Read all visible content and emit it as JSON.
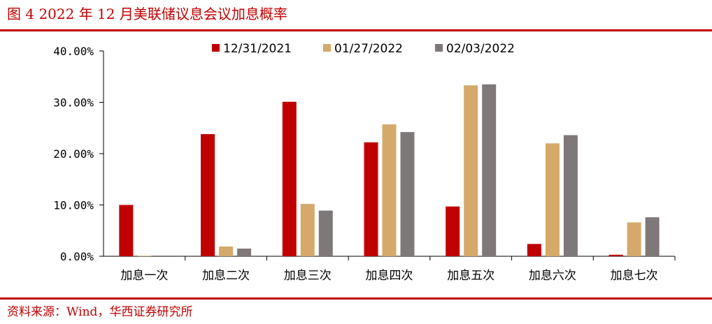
{
  "figure": {
    "title": "图 4  2022 年 12 月美联储议息会议加息概率",
    "source": "资料来源：Wind，华西证券研究所"
  },
  "colors": {
    "accent": "#c00000",
    "series": [
      "#c00000",
      "#d4a96a",
      "#7f7879"
    ]
  },
  "chart_data": {
    "type": "bar",
    "title": "",
    "xlabel": "",
    "ylabel": "",
    "ylim": [
      0,
      40
    ],
    "yticks": [
      0,
      10,
      20,
      30,
      40
    ],
    "ytick_labels": [
      "0.00%",
      "10.00%",
      "20.00%",
      "30.00%",
      "40.00%"
    ],
    "categories": [
      "加息一次",
      "加息二次",
      "加息三次",
      "加息四次",
      "加息五次",
      "加息六次",
      "加息七次"
    ],
    "series": [
      {
        "name": "12/31/2021",
        "values": [
          10.0,
          23.8,
          30.1,
          22.2,
          9.7,
          2.4,
          0.3
        ]
      },
      {
        "name": "01/27/2022",
        "values": [
          0.1,
          1.9,
          10.2,
          25.7,
          33.3,
          22.0,
          6.6
        ]
      },
      {
        "name": "02/03/2022",
        "values": [
          0.0,
          1.5,
          8.9,
          24.2,
          33.5,
          23.6,
          7.6
        ]
      }
    ],
    "legend_position": "top",
    "grid": false
  }
}
